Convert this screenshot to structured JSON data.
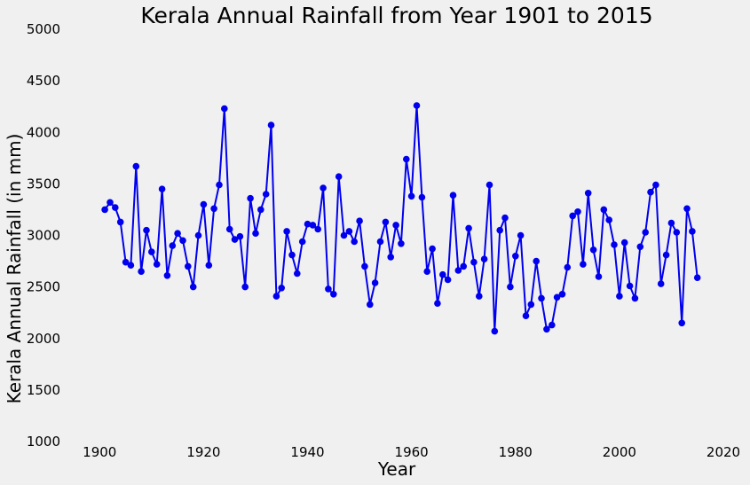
{
  "chart_data": {
    "type": "line",
    "title": "Kerala Annual Rainfall from Year 1901 to 2015",
    "xlabel": "Year",
    "ylabel": "Kerala Annual Rainfall (in mm)",
    "xlim": [
      1895,
      2020
    ],
    "ylim": [
      1000,
      5000
    ],
    "xticks": [
      "1900",
      "1920",
      "1940",
      "1960",
      "1980",
      "2000",
      "2020"
    ],
    "yticks": [
      "1000",
      "1500",
      "2000",
      "2500",
      "3000",
      "3500",
      "4000",
      "4500",
      "5000"
    ],
    "grid": false,
    "legend": "none",
    "series": [
      {
        "color": "#0000ee",
        "x": [
          1901,
          1902,
          1903,
          1904,
          1905,
          1906,
          1907,
          1908,
          1909,
          1910,
          1911,
          1912,
          1913,
          1914,
          1915,
          1916,
          1917,
          1918,
          1919,
          1920,
          1921,
          1922,
          1923,
          1924,
          1925,
          1926,
          1927,
          1928,
          1929,
          1930,
          1931,
          1932,
          1933,
          1934,
          1935,
          1936,
          1937,
          1938,
          1939,
          1940,
          1941,
          1942,
          1943,
          1944,
          1945,
          1946,
          1947,
          1948,
          1949,
          1950,
          1951,
          1952,
          1953,
          1954,
          1955,
          1956,
          1957,
          1958,
          1959,
          1960,
          1961,
          1962,
          1963,
          1964,
          1965,
          1966,
          1967,
          1968,
          1969,
          1970,
          1971,
          1972,
          1973,
          1974,
          1975,
          1976,
          1977,
          1978,
          1979,
          1980,
          1981,
          1982,
          1983,
          1984,
          1985,
          1986,
          1987,
          1988,
          1989,
          1990,
          1991,
          1992,
          1993,
          1994,
          1995,
          1996,
          1997,
          1998,
          1999,
          2000,
          2001,
          2002,
          2003,
          2004,
          2005,
          2006,
          2007,
          2008,
          2009,
          2010,
          2011,
          2012,
          2013,
          2014,
          2015
        ],
        "values": [
          3250,
          3320,
          3270,
          3130,
          2740,
          2710,
          3670,
          2650,
          3050,
          2840,
          2720,
          3450,
          2610,
          2900,
          3020,
          2950,
          2700,
          2500,
          3000,
          3300,
          2710,
          3260,
          3490,
          4230,
          3060,
          2960,
          2990,
          2500,
          3360,
          3020,
          3250,
          3400,
          4070,
          2410,
          2490,
          3040,
          2810,
          2630,
          2940,
          3110,
          3100,
          3060,
          3460,
          2480,
          2430,
          3570,
          3000,
          3040,
          2940,
          3140,
          2700,
          2330,
          2540,
          2940,
          3130,
          2790,
          3100,
          2920,
          3740,
          3380,
          4260,
          3370,
          2650,
          2870,
          2340,
          2620,
          2570,
          3390,
          2660,
          2700,
          3070,
          2740,
          2410,
          2770,
          3490,
          2070,
          3050,
          3170,
          2500,
          2800,
          3000,
          2220,
          2330,
          2750,
          2390,
          2090,
          2130,
          2400,
          2430,
          2690,
          3190,
          3230,
          2720,
          3410,
          2860,
          2600,
          3250,
          3150,
          2910,
          2410,
          2930,
          2510,
          2390,
          2890,
          3030,
          3420,
          3490,
          2530,
          2810,
          3120,
          3030,
          2150,
          3260,
          3040,
          2590
        ]
      }
    ]
  }
}
